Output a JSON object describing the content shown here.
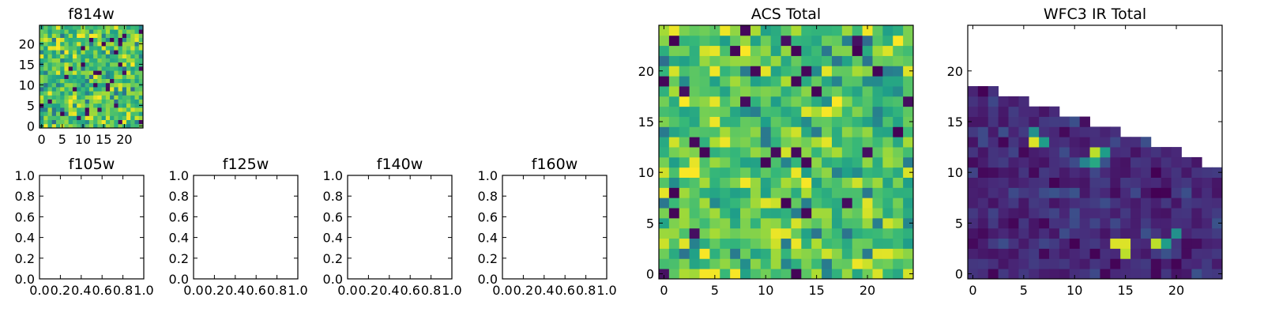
{
  "figure": {
    "background": "#ffffff"
  },
  "chart_data": [
    {
      "type": "heatmap",
      "title": "f814w",
      "xlim": [
        -0.5,
        24.5
      ],
      "ylim": [
        -0.5,
        24.5
      ],
      "xticks": [
        0,
        5,
        10,
        15,
        20
      ],
      "yticks": [
        0,
        5,
        10,
        15,
        20
      ],
      "colormap": "viridis",
      "grid": false,
      "values_description": "",
      "matrix_fn": "noise",
      "seed": 814
    },
    {
      "type": "heatmap",
      "title": "f105w",
      "xlim": [
        0,
        1
      ],
      "ylim": [
        0,
        1
      ],
      "xticks": [
        0.0,
        0.2,
        0.4,
        0.6,
        0.8,
        1.0
      ],
      "yticks": [
        0.0,
        0.2,
        0.4,
        0.6,
        0.8,
        1.0
      ],
      "empty": true
    },
    {
      "type": "heatmap",
      "title": "f125w",
      "xlim": [
        0,
        1
      ],
      "ylim": [
        0,
        1
      ],
      "xticks": [
        0.0,
        0.2,
        0.4,
        0.6,
        0.8,
        1.0
      ],
      "yticks": [
        0.0,
        0.2,
        0.4,
        0.6,
        0.8,
        1.0
      ],
      "empty": true
    },
    {
      "type": "heatmap",
      "title": "f140w",
      "xlim": [
        0,
        1
      ],
      "ylim": [
        0,
        1
      ],
      "xticks": [
        0.0,
        0.2,
        0.4,
        0.6,
        0.8,
        1.0
      ],
      "yticks": [
        0.0,
        0.2,
        0.4,
        0.6,
        0.8,
        1.0
      ],
      "empty": true
    },
    {
      "type": "heatmap",
      "title": "f160w",
      "xlim": [
        0,
        1
      ],
      "ylim": [
        0,
        1
      ],
      "xticks": [
        0.0,
        0.2,
        0.4,
        0.6,
        0.8,
        1.0
      ],
      "yticks": [
        0.0,
        0.2,
        0.4,
        0.6,
        0.8,
        1.0
      ],
      "empty": true
    },
    {
      "type": "heatmap",
      "title": "ACS Total",
      "xlim": [
        -0.5,
        24.5
      ],
      "ylim": [
        -0.5,
        24.5
      ],
      "xticks": [
        0,
        5,
        10,
        15,
        20
      ],
      "yticks": [
        0,
        5,
        10,
        15,
        20
      ],
      "colormap": "viridis",
      "grid": false,
      "matrix_fn": "noise",
      "seed": 2024
    },
    {
      "type": "heatmap",
      "title": "WFC3 IR Total",
      "xlim": [
        -0.5,
        24.5
      ],
      "ylim": [
        -0.5,
        24.5
      ],
      "xticks": [
        0,
        5,
        10,
        15,
        20
      ],
      "yticks": [
        0,
        5,
        10,
        15,
        20
      ],
      "colormap": "viridis",
      "grid": false,
      "matrix_fn": "wfc3",
      "coverage_top_row_by_column": [
        18,
        18,
        18,
        17,
        17,
        17,
        16,
        16,
        16,
        15,
        15,
        15,
        14,
        14,
        14,
        13,
        13,
        13,
        12,
        12,
        12,
        11,
        11,
        10,
        10
      ],
      "bright_sources": [
        {
          "x": 6,
          "y": 13,
          "v": 0.95
        },
        {
          "x": 7,
          "y": 13,
          "v": 0.55
        },
        {
          "x": 6,
          "y": 14,
          "v": 0.5
        },
        {
          "x": 12,
          "y": 12,
          "v": 0.9
        },
        {
          "x": 13,
          "y": 12,
          "v": 0.55
        },
        {
          "x": 12,
          "y": 11,
          "v": 0.6
        },
        {
          "x": 11,
          "y": 11,
          "v": 0.45
        },
        {
          "x": 14,
          "y": 3,
          "v": 0.95
        },
        {
          "x": 15,
          "y": 3,
          "v": 0.95
        },
        {
          "x": 15,
          "y": 2,
          "v": 0.9
        },
        {
          "x": 18,
          "y": 3,
          "v": 0.9
        },
        {
          "x": 19,
          "y": 3,
          "v": 0.55
        },
        {
          "x": 20,
          "y": 4,
          "v": 0.5
        }
      ],
      "seed": 160
    }
  ]
}
